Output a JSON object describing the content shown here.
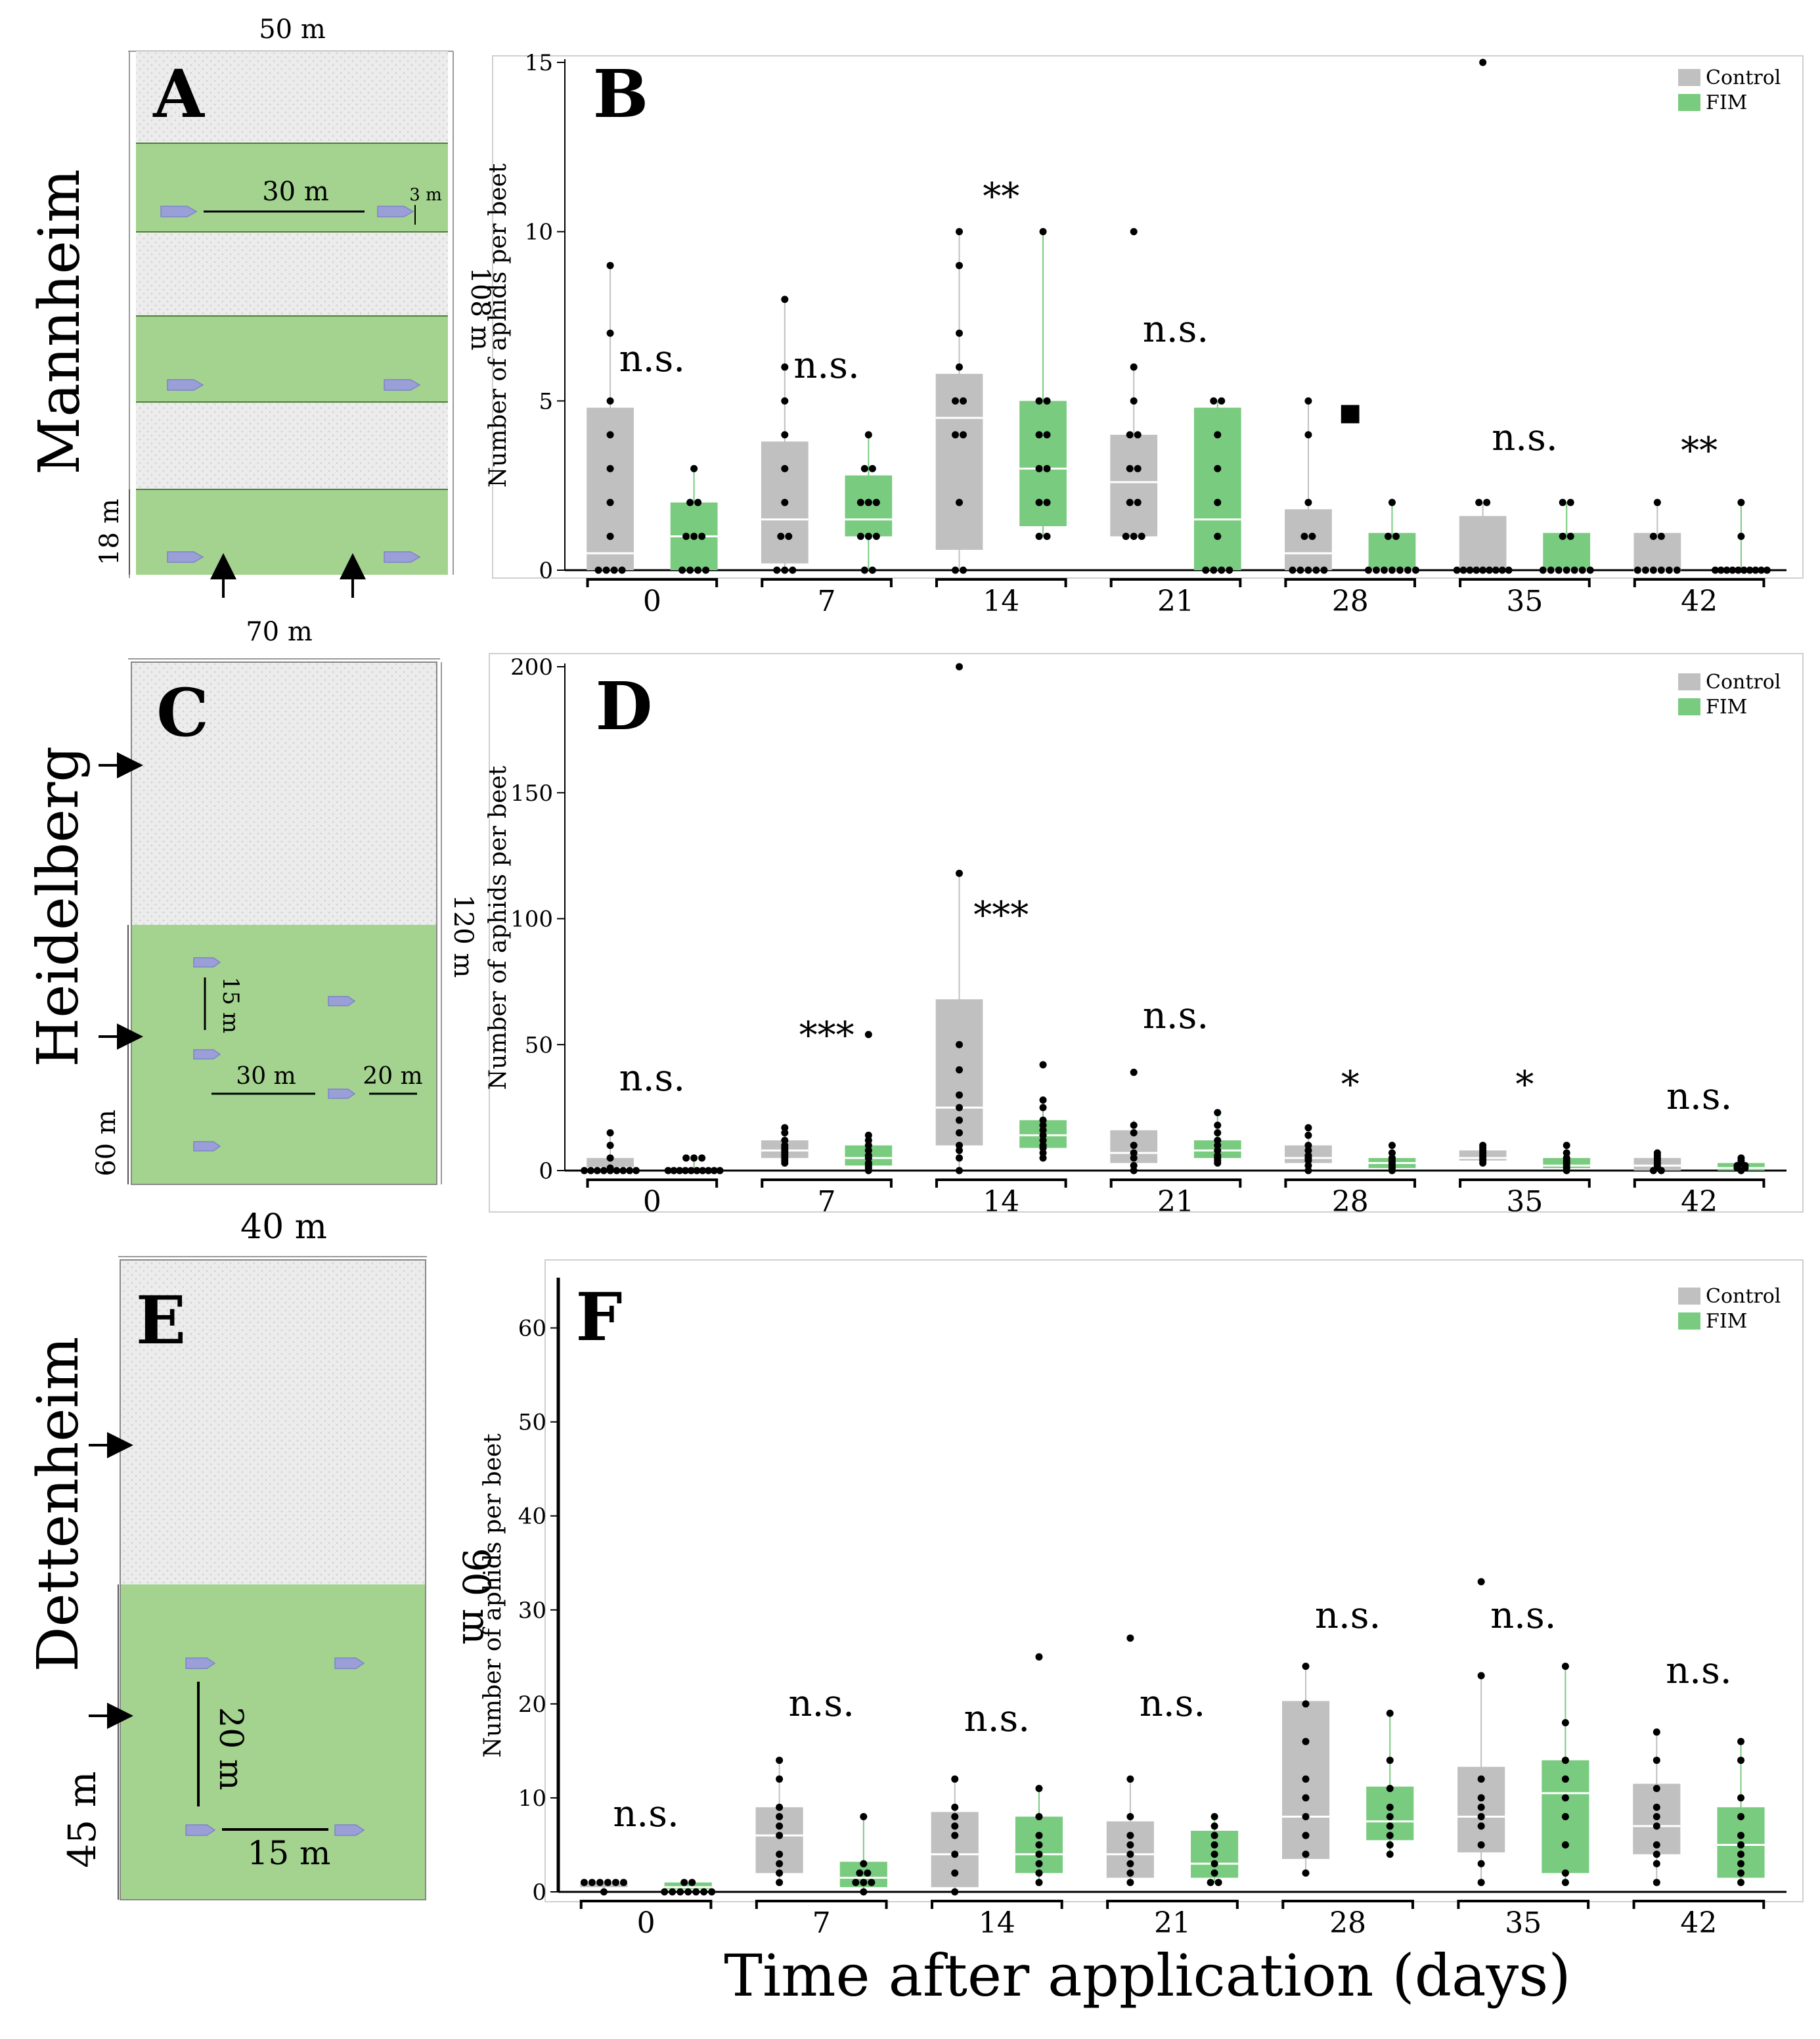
{
  "colors": {
    "control": "#c0c0c0",
    "fim": "#79cb7f",
    "field": "#a4d38f",
    "untreated": "#ececec"
  },
  "figure": {
    "xlabel": "Time after application (days)",
    "legend": [
      "Control",
      "FIM"
    ]
  },
  "maps": [
    {
      "letter": "A",
      "site": "Mannheim",
      "width_label": "50 m",
      "height_label": "108 m",
      "strip_label": "18 m",
      "dist1": "30 m",
      "dist2": "3 m"
    },
    {
      "letter": "C",
      "site": "Heidelberg",
      "width_label": "70 m",
      "height_label": "120 m",
      "strip_label": "60 m",
      "dist1": "15 m",
      "dist2": "30 m",
      "dist3": "20 m"
    },
    {
      "letter": "E",
      "site": "Dettenheim",
      "width_label": "40 m",
      "height_label": "90 m",
      "strip_label": "45 m",
      "dist1": "20 m",
      "dist2": "15 m"
    }
  ],
  "chart_data": [
    {
      "type": "box",
      "letter": "B",
      "title": "",
      "xlabel": "",
      "ylabel": "Number of aphids per beet",
      "ylim": [
        0,
        15
      ],
      "yticks": [
        0,
        5,
        10,
        15
      ],
      "categories": [
        "0",
        "7",
        "14",
        "21",
        "28",
        "35",
        "42"
      ],
      "significance": [
        "n.s.",
        "n.s.",
        "**",
        "n.s.",
        "▪",
        "n.s.",
        "**"
      ],
      "series": [
        {
          "name": "Control",
          "boxes": [
            [
              0,
              0,
              0.5,
              4.8,
              9
            ],
            [
              0,
              0.2,
              1.5,
              3.8,
              8
            ],
            [
              0,
              0.6,
              4.5,
              5.8,
              10
            ],
            [
              1,
              1,
              2.6,
              4,
              6
            ],
            [
              0,
              0,
              0.5,
              1.8,
              5
            ],
            [
              0,
              0,
              0,
              1.6,
              2
            ],
            [
              0,
              0,
              0,
              1.1,
              2
            ]
          ],
          "points": [
            [
              0,
              0,
              0,
              0,
              1,
              2,
              3,
              4,
              5,
              7,
              9
            ],
            [
              0,
              0,
              0,
              1,
              1,
              2,
              3,
              4,
              5,
              6,
              8
            ],
            [
              0,
              0,
              2,
              4,
              4,
              5,
              5,
              6,
              7,
              9,
              10
            ],
            [
              1,
              1,
              1,
              2,
              2,
              3,
              3,
              4,
              4,
              5,
              6,
              10
            ],
            [
              0,
              0,
              0,
              0,
              0,
              1,
              1,
              2,
              4,
              5
            ],
            [
              0,
              0,
              0,
              0,
              0,
              0,
              0,
              0,
              0,
              2,
              2,
              15
            ],
            [
              0,
              0,
              0,
              0,
              0,
              0,
              1,
              1,
              2
            ]
          ]
        },
        {
          "name": "FIM",
          "boxes": [
            [
              0,
              0,
              1,
              2,
              3
            ],
            [
              0,
              1,
              1.5,
              2.8,
              4
            ],
            [
              1,
              1.3,
              3,
              5,
              10
            ],
            [
              0,
              0,
              1.5,
              4.8,
              5
            ],
            [
              0,
              0,
              0,
              1.1,
              2
            ],
            [
              0,
              0,
              0,
              1.1,
              2
            ],
            [
              0,
              0,
              0,
              0,
              2
            ]
          ],
          "points": [
            [
              0,
              0,
              0,
              0,
              1,
              1,
              1,
              2,
              2,
              3
            ],
            [
              0,
              0,
              1,
              1,
              1,
              2,
              2,
              2,
              3,
              3,
              4
            ],
            [
              1,
              1,
              2,
              2,
              3,
              3,
              4,
              4,
              5,
              5,
              10
            ],
            [
              0,
              0,
              0,
              0,
              1,
              2,
              3,
              4,
              5,
              5
            ],
            [
              0,
              0,
              0,
              0,
              0,
              0,
              0,
              1,
              1,
              2
            ],
            [
              0,
              0,
              0,
              0,
              0,
              0,
              0,
              1,
              1,
              2,
              2
            ],
            [
              0,
              0,
              0,
              0,
              0,
              0,
              0,
              0,
              0,
              0,
              1,
              2
            ]
          ]
        }
      ]
    },
    {
      "type": "box",
      "letter": "D",
      "title": "",
      "xlabel": "",
      "ylabel": "Number of aphids per beet",
      "ylim": [
        0,
        200
      ],
      "yticks": [
        0,
        50,
        100,
        150,
        200
      ],
      "categories": [
        "0",
        "7",
        "14",
        "21",
        "28",
        "35",
        "42"
      ],
      "significance": [
        "n.s.",
        "***",
        "***",
        "n.s.",
        "*",
        "*",
        "n.s."
      ],
      "series": [
        {
          "name": "Control",
          "boxes": [
            [
              0,
              0,
              1,
              5,
              15
            ],
            [
              3,
              5,
              8,
              12,
              17
            ],
            [
              0,
              10,
              25,
              68,
              118
            ],
            [
              0,
              3,
              7,
              16,
              20
            ],
            [
              0,
              3,
              5,
              10,
              17
            ],
            [
              3,
              4,
              5,
              8,
              10
            ],
            [
              0,
              0,
              2,
              5,
              7
            ]
          ],
          "points": [
            [
              0,
              0,
              0,
              0,
              0,
              0,
              0,
              0,
              0,
              1,
              5,
              10,
              15
            ],
            [
              3,
              4,
              5,
              6,
              7,
              8,
              9,
              10,
              12,
              15,
              17
            ],
            [
              0,
              5,
              8,
              10,
              15,
              20,
              25,
              30,
              40,
              50,
              118,
              200
            ],
            [
              0,
              2,
              5,
              7,
              10,
              15,
              18,
              39
            ],
            [
              0,
              2,
              4,
              5,
              6,
              8,
              10,
              14,
              17
            ],
            [
              3,
              4,
              5,
              6,
              7,
              8,
              9,
              10
            ],
            [
              0,
              0,
              1,
              2,
              3,
              4,
              5,
              6,
              7
            ]
          ]
        },
        {
          "name": "FIM",
          "boxes": [
            [
              0,
              0,
              0,
              1,
              5
            ],
            [
              0,
              2,
              5,
              10,
              14
            ],
            [
              5,
              9,
              14,
              20,
              28
            ],
            [
              3,
              5,
              8,
              12,
              23
            ],
            [
              0,
              1,
              3,
              5,
              10
            ],
            [
              0,
              1,
              2,
              5,
              10
            ],
            [
              0,
              0,
              1,
              3,
              5
            ]
          ],
          "points": [
            [
              0,
              0,
              0,
              0,
              0,
              0,
              0,
              0,
              0,
              0,
              5,
              5,
              5
            ],
            [
              0,
              1,
              2,
              3,
              5,
              6,
              8,
              10,
              12,
              14,
              54
            ],
            [
              5,
              7,
              9,
              10,
              12,
              14,
              16,
              18,
              20,
              25,
              28,
              42
            ],
            [
              3,
              4,
              5,
              6,
              8,
              10,
              12,
              15,
              18,
              23
            ],
            [
              0,
              1,
              2,
              3,
              4,
              5,
              7,
              10
            ],
            [
              0,
              1,
              2,
              3,
              4,
              5,
              7,
              10
            ],
            [
              0,
              1,
              1,
              2,
              2,
              3,
              4,
              5
            ]
          ]
        }
      ]
    },
    {
      "type": "box",
      "letter": "F",
      "title": "",
      "xlabel": "",
      "ylabel": "Number of aphids per beet",
      "ylim": [
        0,
        65
      ],
      "yticks": [
        0,
        10,
        20,
        30,
        40,
        50,
        60
      ],
      "categories": [
        "0",
        "7",
        "14",
        "21",
        "28",
        "35",
        "42"
      ],
      "significance": [
        "n.s.",
        "n.s.",
        "n.s.",
        "n.s.",
        "n.s.",
        "n.s.",
        "n.s."
      ],
      "series": [
        {
          "name": "Control",
          "boxes": [
            [
              0,
              0.5,
              1,
              1,
              1
            ],
            [
              1,
              2,
              6,
              9,
              14
            ],
            [
              0,
              0.5,
              4,
              8.5,
              12
            ],
            [
              1,
              1.5,
              4,
              7.5,
              12
            ],
            [
              2,
              3.5,
              8,
              20.3,
              24
            ],
            [
              1,
              4.2,
              8,
              13.3,
              23
            ],
            [
              1,
              4,
              7,
              11.5,
              17
            ]
          ],
          "points": [
            [
              0,
              1,
              1,
              1,
              1,
              1,
              1
            ],
            [
              1,
              2,
              3,
              4,
              6,
              7,
              8,
              9,
              12,
              14
            ],
            [
              0,
              2,
              4,
              6,
              7,
              8,
              9,
              12
            ],
            [
              1,
              2,
              3,
              4,
              5,
              6,
              8,
              12,
              27
            ],
            [
              2,
              4,
              6,
              8,
              10,
              12,
              16,
              20,
              24
            ],
            [
              1,
              3,
              5,
              7,
              8,
              9,
              10,
              12,
              23,
              33
            ],
            [
              1,
              3,
              4,
              5,
              7,
              8,
              9,
              11,
              14,
              17
            ]
          ]
        },
        {
          "name": "FIM",
          "boxes": [
            [
              0,
              0.3,
              0.5,
              1,
              1
            ],
            [
              0,
              0.5,
              1.5,
              3.2,
              8
            ],
            [
              1,
              2,
              4,
              8,
              11
            ],
            [
              1,
              1.5,
              3,
              6.5,
              8
            ],
            [
              4,
              5.5,
              7.5,
              11.2,
              19
            ],
            [
              1,
              2,
              10.5,
              14,
              24
            ],
            [
              1,
              1.5,
              5,
              9,
              16
            ]
          ],
          "points": [
            [
              0,
              0,
              0,
              0,
              0,
              0,
              0,
              1,
              1
            ],
            [
              0,
              1,
              1,
              1,
              2,
              2,
              3,
              8
            ],
            [
              1,
              2,
              3,
              4,
              5,
              6,
              8,
              11,
              25
            ],
            [
              1,
              1,
              2,
              3,
              4,
              5,
              6,
              7,
              8
            ],
            [
              4,
              5,
              6,
              7,
              8,
              9,
              11,
              14,
              19
            ],
            [
              1,
              2,
              5,
              8,
              10,
              12,
              14,
              18,
              24
            ],
            [
              1,
              2,
              3,
              4,
              5,
              6,
              8,
              10,
              14,
              16
            ]
          ]
        }
      ]
    }
  ]
}
